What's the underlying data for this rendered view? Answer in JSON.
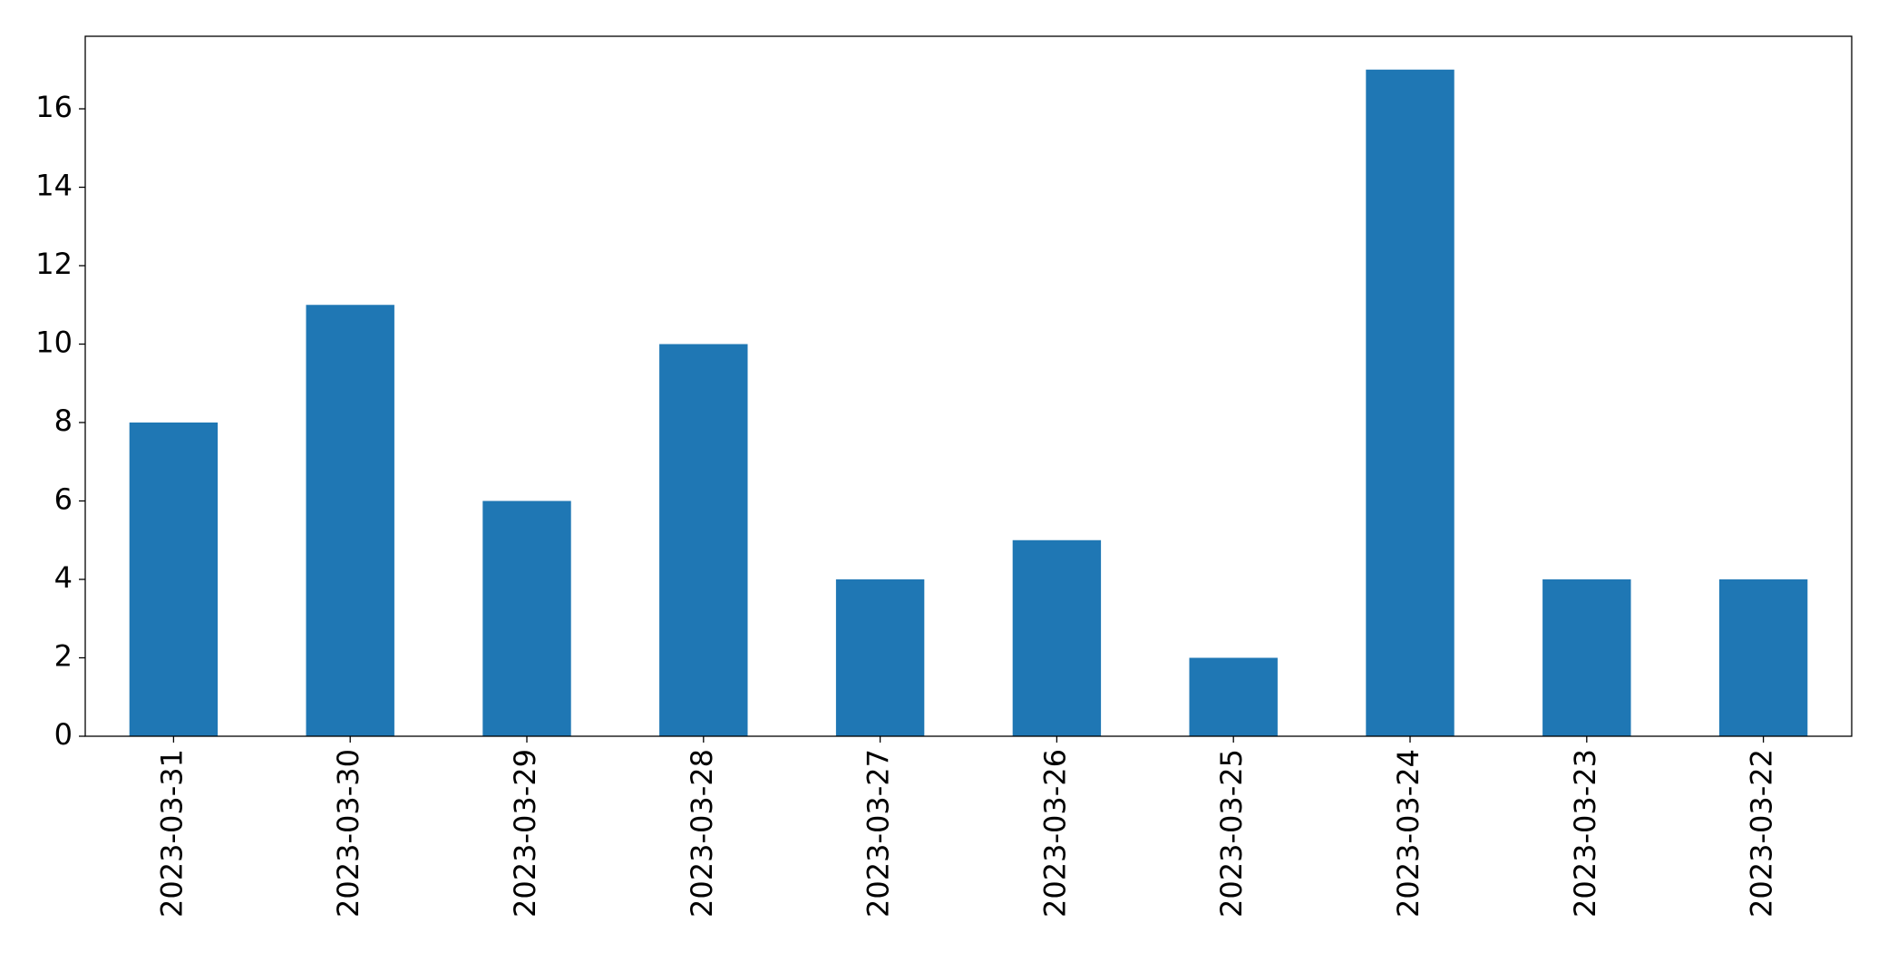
{
  "chart_data": {
    "type": "bar",
    "categories": [
      "2023-03-31",
      "2023-03-30",
      "2023-03-29",
      "2023-03-28",
      "2023-03-27",
      "2023-03-26",
      "2023-03-25",
      "2023-03-24",
      "2023-03-23",
      "2023-03-22"
    ],
    "values": [
      8,
      11,
      6,
      10,
      4,
      5,
      2,
      17,
      4,
      4
    ],
    "color": "#1f77b4",
    "ylim": [
      0,
      17.85
    ],
    "yticks": [
      0,
      2,
      4,
      6,
      8,
      10,
      12,
      14,
      16
    ],
    "grid": false
  }
}
